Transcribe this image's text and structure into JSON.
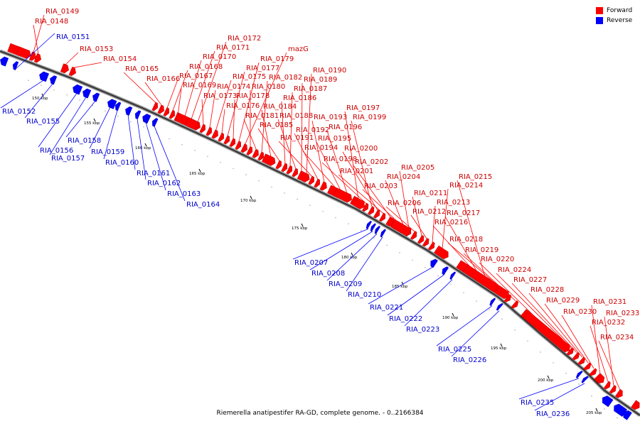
{
  "legend": {
    "forward_label": "Forward",
    "reverse_label": "Reverse",
    "forward_color": "#ff0000",
    "reverse_color": "#0000ff"
  },
  "caption": "Riemerella anatipestifer RA-GD, complete genome. - 0..2166384",
  "ticks": [
    "150 kbp",
    "155 kbp",
    "160 kbp",
    "165 kbp",
    "170 kbp",
    "175 kbp",
    "180 kbp",
    "185 kbp",
    "190 kbp",
    "195 kbp",
    "200 kbp",
    "205 kbp"
  ],
  "forward_labels": [
    "RIA_0149",
    "RIA_0148",
    "RIA_0153",
    "RIA_0154",
    "RIA_0165",
    "RIA_0166",
    "RIA_0167",
    "RIA_0168",
    "RIA_0169",
    "RIA_0170",
    "RIA_0171",
    "RIA_0172",
    "RIA_0173",
    "RIA_0174",
    "RIA_0175",
    "RIA_0176",
    "RIA_0177",
    "RIA_0178",
    "RIA_0179",
    "mazG",
    "RIA_0180",
    "RIA_0181",
    "RIA_0182",
    "RIA_0184",
    "RIA_0185",
    "RIA_0186",
    "RIA_0187",
    "RIA_0188",
    "RIA_0189",
    "RIA_0190",
    "RIA_0191",
    "RIA_0192",
    "RIA_0193",
    "RIA_0194",
    "RIA_0195",
    "RIA_0196",
    "RIA_0197",
    "RIA_0198",
    "RIA_0199",
    "RIA_0200",
    "RIA_0201",
    "RIA_0202",
    "RIA_0203",
    "RIA_0204",
    "RIA_0205",
    "RIA_0206",
    "RIA_0211",
    "RIA_0212",
    "RIA_0213",
    "RIA_0214",
    "RIA_0215",
    "RIA_0216",
    "RIA_0217",
    "RIA_0218",
    "RIA_0219",
    "RIA_0220",
    "RIA_0224",
    "RIA_0227",
    "RIA_0228",
    "RIA_0229",
    "RIA_0230",
    "RIA_0231",
    "RIA_0232",
    "RIA_0233",
    "RIA_0234"
  ],
  "reverse_labels": [
    "RIA_0151",
    "RIA_0152",
    "RIA_0155",
    "RIA_0156",
    "RIA_0157",
    "RIA_0158",
    "RIA_0159",
    "RIA_0160",
    "RIA_0161",
    "RIA_0162",
    "RIA_0163",
    "RIA_0164",
    "RIA_0207",
    "RIA_0208",
    "RIA_0209",
    "RIA_0210",
    "RIA_0221",
    "RIA_0222",
    "RIA_0223",
    "RIA_0225",
    "RIA_0226",
    "RIA_0235",
    "RIA_0236"
  ]
}
